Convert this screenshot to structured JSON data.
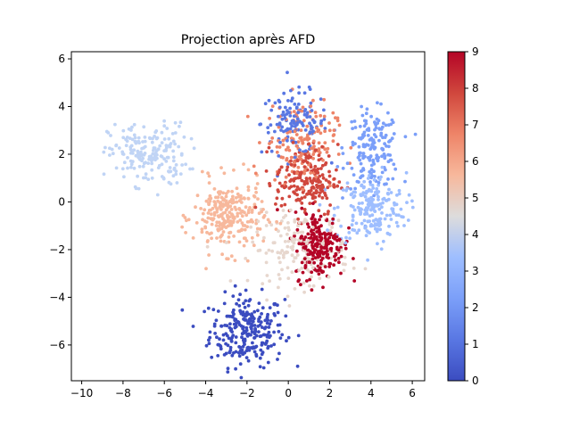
{
  "chart_data": {
    "type": "scatter",
    "title": "Projection après AFD",
    "xlabel": "",
    "ylabel": "",
    "xlim": [
      -10.5,
      6.6
    ],
    "ylim": [
      -7.5,
      6.3
    ],
    "x_ticks": [
      -10,
      -8,
      -6,
      -4,
      -2,
      0,
      2,
      4,
      6
    ],
    "y_ticks": [
      -6,
      -4,
      -2,
      0,
      2,
      4,
      6
    ],
    "grid": false,
    "colormap": "coolwarm",
    "colorbar": {
      "range": [
        0,
        9
      ],
      "ticks": [
        0,
        1,
        2,
        3,
        4,
        5,
        6,
        7,
        8,
        9
      ]
    },
    "clusters": [
      {
        "class": 0,
        "color": "#3b4cc0",
        "center": [
          -2.0,
          -5.4
        ],
        "spread": [
          0.9,
          0.75
        ],
        "n": 260
      },
      {
        "class": 1,
        "color": "#5977e3",
        "center": [
          0.3,
          3.3
        ],
        "spread": [
          0.8,
          0.65
        ],
        "n": 130
      },
      {
        "class": 2,
        "color": "#7b9ff9",
        "center": [
          4.1,
          2.2
        ],
        "spread": [
          0.65,
          0.8
        ],
        "n": 170
      },
      {
        "class": 3,
        "color": "#9ebeff",
        "center": [
          4.0,
          -0.3
        ],
        "spread": [
          0.85,
          0.75
        ],
        "n": 200
      },
      {
        "class": 4,
        "color": "#c0d4f5",
        "center": [
          -6.8,
          2.0
        ],
        "spread": [
          0.95,
          0.65
        ],
        "n": 190
      },
      {
        "class": 5,
        "color": "#e7d7ce",
        "center": [
          0.6,
          -2.0
        ],
        "spread": [
          1.2,
          0.75
        ],
        "n": 170
      },
      {
        "class": 6,
        "color": "#f7b89c",
        "center": [
          -2.9,
          -0.6
        ],
        "spread": [
          0.85,
          0.75
        ],
        "n": 260
      },
      {
        "class": 7,
        "color": "#ee8468",
        "center": [
          0.6,
          2.5
        ],
        "spread": [
          0.85,
          0.85
        ],
        "n": 160
      },
      {
        "class": 8,
        "color": "#d0473d",
        "center": [
          0.9,
          0.9
        ],
        "spread": [
          0.75,
          0.75
        ],
        "n": 190
      },
      {
        "class": 9,
        "color": "#b40426",
        "center": [
          1.5,
          -1.8
        ],
        "spread": [
          0.6,
          0.7
        ],
        "n": 220
      }
    ]
  }
}
